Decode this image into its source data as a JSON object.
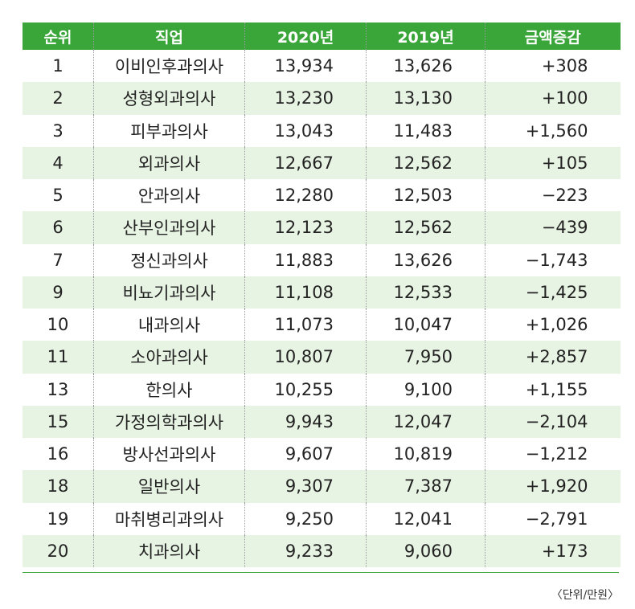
{
  "chart_data": {
    "type": "table",
    "columns": [
      "순위",
      "직업",
      "2020년",
      "2019년",
      "금액증감"
    ],
    "rows": [
      [
        "1",
        "이비인후과의사",
        "13,934",
        "13,626",
        "+308"
      ],
      [
        "2",
        "성형외과의사",
        "13,230",
        "13,130",
        "+100"
      ],
      [
        "3",
        "피부과의사",
        "13,043",
        "11,483",
        "+1,560"
      ],
      [
        "4",
        "외과의사",
        "12,667",
        "12,562",
        "+105"
      ],
      [
        "5",
        "안과의사",
        "12,280",
        "12,503",
        "−223"
      ],
      [
        "6",
        "산부인과의사",
        "12,123",
        "12,562",
        "−439"
      ],
      [
        "7",
        "정신과의사",
        "11,883",
        "13,626",
        "−1,743"
      ],
      [
        "9",
        "비뇨기과의사",
        "11,108",
        "12,533",
        "−1,425"
      ],
      [
        "10",
        "내과의사",
        "11,073",
        "10,047",
        "+1,026"
      ],
      [
        "11",
        "소아과의사",
        "10,807",
        "7,950",
        "+2,857"
      ],
      [
        "13",
        "한의사",
        "10,255",
        "9,100",
        "+1,155"
      ],
      [
        "15",
        "가정의학과의사",
        "9,943",
        "12,047",
        "−2,104"
      ],
      [
        "16",
        "방사선과의사",
        "9,607",
        "10,819",
        "−1,212"
      ],
      [
        "18",
        "일반의사",
        "9,307",
        "7,387",
        "+1,920"
      ],
      [
        "19",
        "마취병리과의사",
        "9,250",
        "12,041",
        "−2,791"
      ],
      [
        "20",
        "치과의사",
        "9,233",
        "9,060",
        "+173"
      ]
    ],
    "unit_note": "〈단위/만원〉",
    "header_color": "#3aa63a",
    "stripe_color": "#e8f4e3"
  }
}
